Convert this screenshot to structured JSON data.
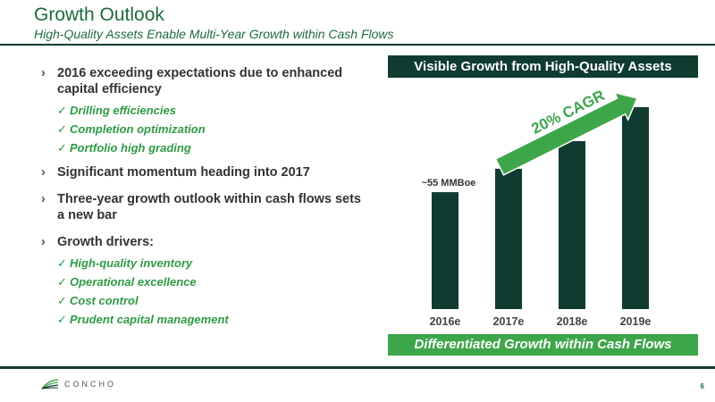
{
  "header": {
    "title": "Growth Outlook",
    "subtitle": "High-Quality Assets Enable Multi-Year Growth within Cash Flows"
  },
  "bullets": [
    {
      "text": "2016 exceeding expectations due to enhanced capital efficiency",
      "subs": [
        "Drilling efficiencies",
        "Completion optimization",
        "Portfolio high grading"
      ]
    },
    {
      "text": "Significant momentum heading into 2017",
      "subs": []
    },
    {
      "text": "Three-year growth outlook within cash flows sets a new bar",
      "subs": []
    },
    {
      "text": "Growth drivers:",
      "subs": [
        "High-quality inventory",
        "Operational excellence",
        "Cost control",
        "Prudent capital management"
      ]
    }
  ],
  "chart_panel": {
    "header": "Visible Growth from High-Quality Assets",
    "footer": "Differentiated Growth within Cash Flows"
  },
  "chart_data": {
    "type": "bar",
    "categories": [
      "2016e",
      "2017e",
      "2018e",
      "2019e"
    ],
    "values": [
      55,
      66,
      79,
      95
    ],
    "data_labels": [
      "~55 MMBoe",
      "",
      "",
      ""
    ],
    "annotation": "20% CAGR",
    "ylim": [
      0,
      100
    ],
    "grid": false,
    "bar_color": "#0f3b31",
    "arrow_color": "#3ea64a"
  },
  "footer": {
    "logo_text": "CONCHO",
    "page_number": "6"
  },
  "colors": {
    "brand_dark": "#0f3b31",
    "brand_green": "#3ea64a",
    "title_green": "#1e6b3c"
  }
}
